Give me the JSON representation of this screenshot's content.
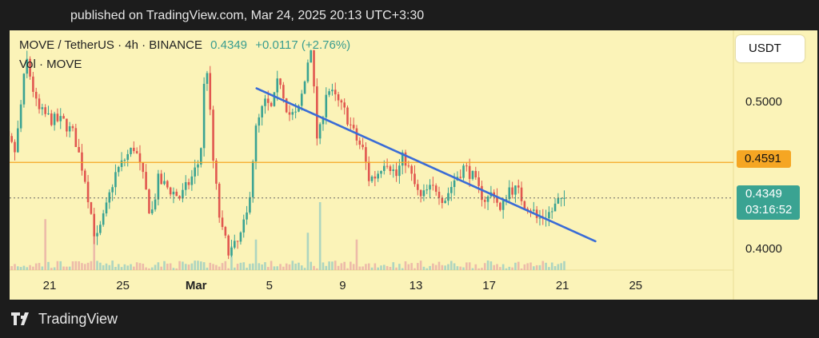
{
  "header": {
    "published": "published on TradingView.com, Mar 24, 2025 20:13 UTC+3:30",
    "symbol": "MOVE / TetherUS · 4h · BINANCE",
    "last_price": "0.4349",
    "change": "+0.0117 (+2.76%)",
    "volume_label": "Vol · MOVE"
  },
  "price_axis": {
    "currency_button": "USDT",
    "labels": [
      "0.5000",
      "0.4000"
    ],
    "horizontal_level": "0.4591",
    "current_price": "0.4349",
    "countdown": "03:16:52"
  },
  "footer": {
    "brand": "TradingView"
  },
  "colors": {
    "up": "#3aa392",
    "down": "#e1574f",
    "trendline": "#3a6cd6",
    "level_line": "#f5a623",
    "background": "#fbf3b8"
  },
  "chart_data": {
    "type": "candlestick",
    "symbol": "MOVE / TetherUS",
    "interval": "4h",
    "exchange": "BINANCE",
    "x_tick_labels": [
      "21",
      "25",
      "Mar",
      "5",
      "9",
      "13",
      "17",
      "21",
      "25"
    ],
    "y_tick_labels": [
      "0.5000",
      "0.4000"
    ],
    "ylim": [
      0.385,
      0.575
    ],
    "horizontal_level": 0.4591,
    "current_price": 0.4349,
    "trendline": {
      "start": {
        "day": 11.3,
        "price": 0.5095
      },
      "end": {
        "day": 29.8,
        "price": 0.4055
      }
    },
    "price_path": [
      [
        -3.4,
        0.51
      ],
      [
        -2.3,
        0.478
      ],
      [
        -1.7,
        0.466
      ],
      [
        -1.1,
        0.53
      ],
      [
        -0.5,
        0.495
      ],
      [
        0.3,
        0.488
      ],
      [
        0.9,
        0.487
      ],
      [
        1.5,
        0.478
      ],
      [
        2.1,
        0.448
      ],
      [
        2.7,
        0.405
      ],
      [
        3.2,
        0.425
      ],
      [
        3.7,
        0.45
      ],
      [
        4.3,
        0.462
      ],
      [
        4.8,
        0.47
      ],
      [
        5.3,
        0.447
      ],
      [
        5.7,
        0.422
      ],
      [
        6.1,
        0.447
      ],
      [
        6.6,
        0.442
      ],
      [
        7.3,
        0.435
      ],
      [
        7.9,
        0.448
      ],
      [
        8.4,
        0.462
      ],
      [
        8.7,
        0.535
      ],
      [
        9.1,
        0.46
      ],
      [
        9.5,
        0.415
      ],
      [
        10.0,
        0.398
      ],
      [
        10.5,
        0.405
      ],
      [
        11.0,
        0.426
      ],
      [
        11.4,
        0.48
      ],
      [
        11.9,
        0.5
      ],
      [
        12.3,
        0.495
      ],
      [
        12.7,
        0.518
      ],
      [
        13.2,
        0.492
      ],
      [
        13.7,
        0.491
      ],
      [
        14.2,
        0.52
      ],
      [
        14.4,
        0.545
      ],
      [
        14.8,
        0.47
      ],
      [
        15.3,
        0.51
      ],
      [
        15.8,
        0.502
      ],
      [
        16.3,
        0.493
      ],
      [
        16.9,
        0.475
      ],
      [
        17.3,
        0.467
      ],
      [
        17.6,
        0.448
      ],
      [
        18.0,
        0.45
      ],
      [
        18.5,
        0.462
      ],
      [
        19.1,
        0.45
      ],
      [
        19.5,
        0.464
      ],
      [
        19.9,
        0.45
      ],
      [
        20.4,
        0.434
      ],
      [
        20.8,
        0.44
      ],
      [
        21.3,
        0.442
      ],
      [
        21.7,
        0.433
      ],
      [
        22.3,
        0.448
      ],
      [
        22.8,
        0.456
      ],
      [
        23.2,
        0.451
      ],
      [
        23.6,
        0.44
      ],
      [
        24.0,
        0.433
      ],
      [
        24.4,
        0.44
      ],
      [
        24.8,
        0.424
      ],
      [
        25.2,
        0.442
      ],
      [
        25.7,
        0.44
      ],
      [
        26.1,
        0.431
      ],
      [
        26.5,
        0.428
      ],
      [
        26.8,
        0.42
      ],
      [
        27.2,
        0.423
      ],
      [
        27.6,
        0.426
      ],
      [
        27.9,
        0.432
      ],
      [
        28.1,
        0.4349
      ]
    ],
    "volume_spikes": [
      {
        "day": -0.2,
        "relative": 0.75
      },
      {
        "day": 2.5,
        "relative": 0.55
      },
      {
        "day": 9.9,
        "relative": 0.35
      },
      {
        "day": 11.3,
        "relative": 0.45
      },
      {
        "day": 14.1,
        "relative": 0.55
      },
      {
        "day": 14.7,
        "relative": 1.0
      },
      {
        "day": 16.7,
        "relative": 0.45
      }
    ]
  }
}
